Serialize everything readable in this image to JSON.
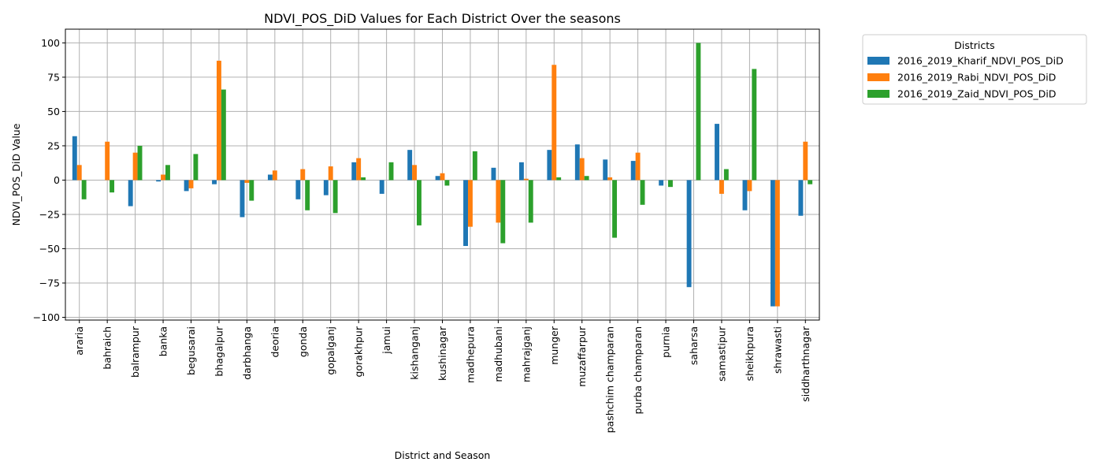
{
  "chart_data": {
    "type": "bar",
    "title": "NDVI_POS_DiD Values for Each District Over the seasons",
    "xlabel": "District and Season",
    "ylabel": "NDVI_POS_DiD Value",
    "ylim": [
      -102,
      110
    ],
    "yticks": [
      -100,
      -75,
      -50,
      -25,
      0,
      25,
      50,
      75,
      100
    ],
    "grid": true,
    "legend": {
      "title": "Districts",
      "placement": "outside-top-right"
    },
    "categories": [
      "araria",
      "bahraich",
      "balrampur",
      "banka",
      "begusarai",
      "bhagalpur",
      "darbhanga",
      "deoria",
      "gonda",
      "gopalganj",
      "gorakhpur",
      "jamui",
      "kishanganj",
      "kushinagar",
      "madhepura",
      "madhubani",
      "mahrajganj",
      "munger",
      "muzaffarpur",
      "pashchim champaran",
      "purba champaran",
      "purnia",
      "saharsa",
      "samastipur",
      "sheikhpura",
      "shrawasti",
      "siddharthnagar"
    ],
    "series": [
      {
        "name": "2016_2019_Kharif_NDVI_POS_DiD",
        "color": "#1f77b4",
        "values": [
          32,
          0,
          -19,
          -1,
          -8,
          -3,
          -27,
          4,
          -14,
          -11,
          13,
          -10,
          22,
          3,
          -48,
          9,
          13,
          22,
          26,
          15,
          14,
          -4,
          -78,
          41,
          -22,
          -92,
          -26
        ]
      },
      {
        "name": "2016_2019_Rabi_NDVI_POS_DiD",
        "color": "#ff7f0e",
        "values": [
          11,
          28,
          20,
          4,
          -6,
          87,
          -2,
          7,
          8,
          10,
          16,
          0,
          11,
          5,
          -34,
          -31,
          1,
          84,
          16,
          2,
          20,
          0,
          0,
          -10,
          -8,
          -92,
          28
        ]
      },
      {
        "name": "2016_2019_Zaid_NDVI_POS_DiD",
        "color": "#2ca02c",
        "values": [
          -14,
          -9,
          25,
          11,
          19,
          66,
          -15,
          0,
          -22,
          -24,
          2,
          13,
          -33,
          -4,
          21,
          -46,
          -31,
          2,
          3,
          -42,
          -18,
          -5,
          100,
          8,
          81,
          0,
          -3
        ]
      }
    ]
  }
}
